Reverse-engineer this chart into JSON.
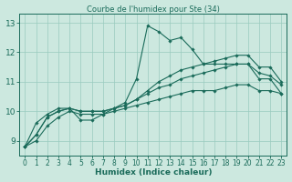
{
  "title": "Courbe de l'humidex pour Ste (34)",
  "xlabel": "Humidex (Indice chaleur)",
  "background_color": "#cce8df",
  "grid_color": "#99cbbf",
  "line_color": "#1a6b5a",
  "xlim": [
    -0.5,
    23.5
  ],
  "ylim": [
    8.5,
    13.3
  ],
  "xticks": [
    0,
    1,
    2,
    3,
    4,
    5,
    6,
    7,
    8,
    9,
    10,
    11,
    12,
    13,
    14,
    15,
    16,
    17,
    18,
    19,
    20,
    21,
    22,
    23
  ],
  "yticks": [
    9,
    10,
    11,
    12,
    13
  ],
  "series": [
    [
      8.8,
      9.6,
      9.9,
      10.1,
      10.1,
      9.7,
      9.7,
      9.9,
      10.1,
      10.3,
      11.1,
      12.9,
      12.7,
      12.4,
      12.5,
      12.1,
      11.6,
      11.6,
      11.6,
      11.6,
      11.6,
      11.1,
      11.1,
      10.6
    ],
    [
      8.8,
      9.2,
      9.8,
      10.0,
      10.1,
      10.0,
      10.0,
      10.0,
      10.1,
      10.2,
      10.4,
      10.7,
      11.0,
      11.2,
      11.4,
      11.5,
      11.6,
      11.7,
      11.8,
      11.9,
      11.9,
      11.5,
      11.5,
      11.0
    ],
    [
      8.8,
      9.2,
      9.8,
      10.0,
      10.1,
      10.0,
      10.0,
      10.0,
      10.1,
      10.2,
      10.4,
      10.6,
      10.8,
      10.9,
      11.1,
      11.2,
      11.3,
      11.4,
      11.5,
      11.6,
      11.6,
      11.3,
      11.2,
      10.9
    ],
    [
      8.8,
      9.0,
      9.5,
      9.8,
      10.0,
      9.9,
      9.9,
      9.9,
      10.0,
      10.1,
      10.2,
      10.3,
      10.4,
      10.5,
      10.6,
      10.7,
      10.7,
      10.7,
      10.8,
      10.9,
      10.9,
      10.7,
      10.7,
      10.6
    ]
  ]
}
